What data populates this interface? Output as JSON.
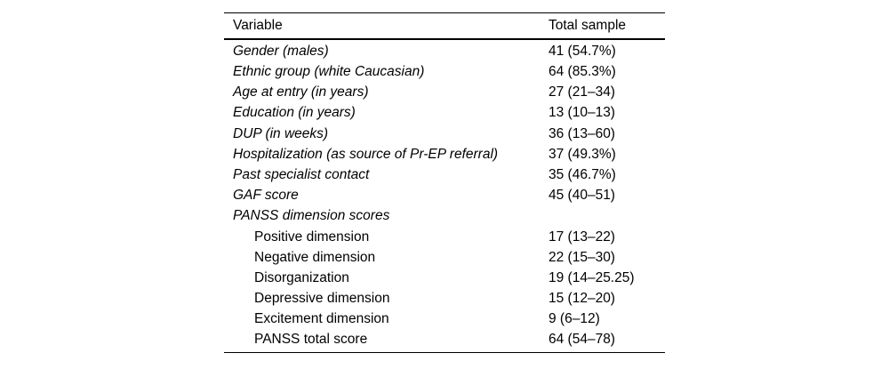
{
  "table": {
    "columns": [
      "Variable",
      "Total sample"
    ],
    "rows": [
      {
        "label": "Gender (males)",
        "value": "41 (54.7%)"
      },
      {
        "label": "Ethnic group (white Caucasian)",
        "value": "64 (85.3%)"
      },
      {
        "label": "Age at entry (in years)",
        "value": "27 (21–34)"
      },
      {
        "label": "Education (in years)",
        "value": "13 (10–13)"
      },
      {
        "label": "DUP (in weeks)",
        "value": "36 (13–60)"
      },
      {
        "label": "Hospitalization (as source of Pr-EP referral)",
        "value": "37 (49.3%)"
      },
      {
        "label": "Past specialist contact",
        "value": "35 (46.7%)"
      },
      {
        "label": "GAF score",
        "value": "45 (40–51)"
      },
      {
        "label": "PANSS dimension scores",
        "value": ""
      },
      {
        "label": "Positive dimension",
        "value": "17 (13–22)"
      },
      {
        "label": "Negative dimension",
        "value": "22 (15–30)"
      },
      {
        "label": "Disorganization",
        "value": "19 (14–25.25)"
      },
      {
        "label": "Depressive dimension",
        "value": "15 (12–20)"
      },
      {
        "label": "Excitement dimension",
        "value": "9 (6–12)"
      },
      {
        "label": "PANSS total score",
        "value": "64 (54–78)"
      }
    ]
  }
}
